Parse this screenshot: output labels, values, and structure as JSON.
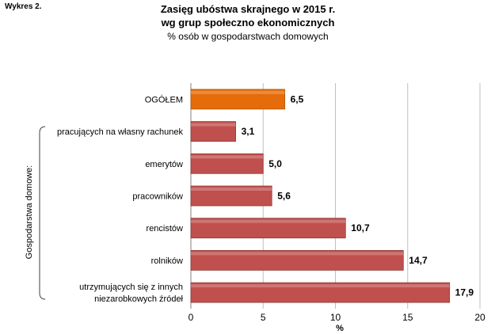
{
  "figure_label": "Wykres 2.",
  "chart_data": {
    "type": "bar",
    "orientation": "horizontal",
    "title_lines": [
      "Zasięg ubóstwa skrajnego w 2015 r.",
      "wg grup społeczno ekonomicznych"
    ],
    "subtitle": "% osób w gospodarstwach domowych",
    "group_label": "Gospodarstwa domowe:",
    "xlabel": "%",
    "xlim": [
      0,
      20
    ],
    "xticks": [
      "0",
      "5",
      "10",
      "15",
      "20"
    ],
    "grid": true,
    "legend": "none",
    "colors": {
      "highlight": "#E46C0A",
      "default": "#C0504D"
    },
    "categories": [
      [
        "OGÓŁEM"
      ],
      [
        "pracujących na własny rachunek"
      ],
      [
        "emerytów"
      ],
      [
        "pracowników"
      ],
      [
        "rencistów"
      ],
      [
        "rolników"
      ],
      [
        "utrzymujących się z innych",
        "niezarobkowych źródeł"
      ]
    ],
    "values": [
      6.5,
      3.1,
      5.0,
      5.6,
      10.7,
      14.7,
      17.9
    ],
    "value_labels": [
      "6,5",
      "3,1",
      "5,0",
      "5,6",
      "10,7",
      "14,7",
      "17,9"
    ],
    "highlighted_index": 0
  }
}
